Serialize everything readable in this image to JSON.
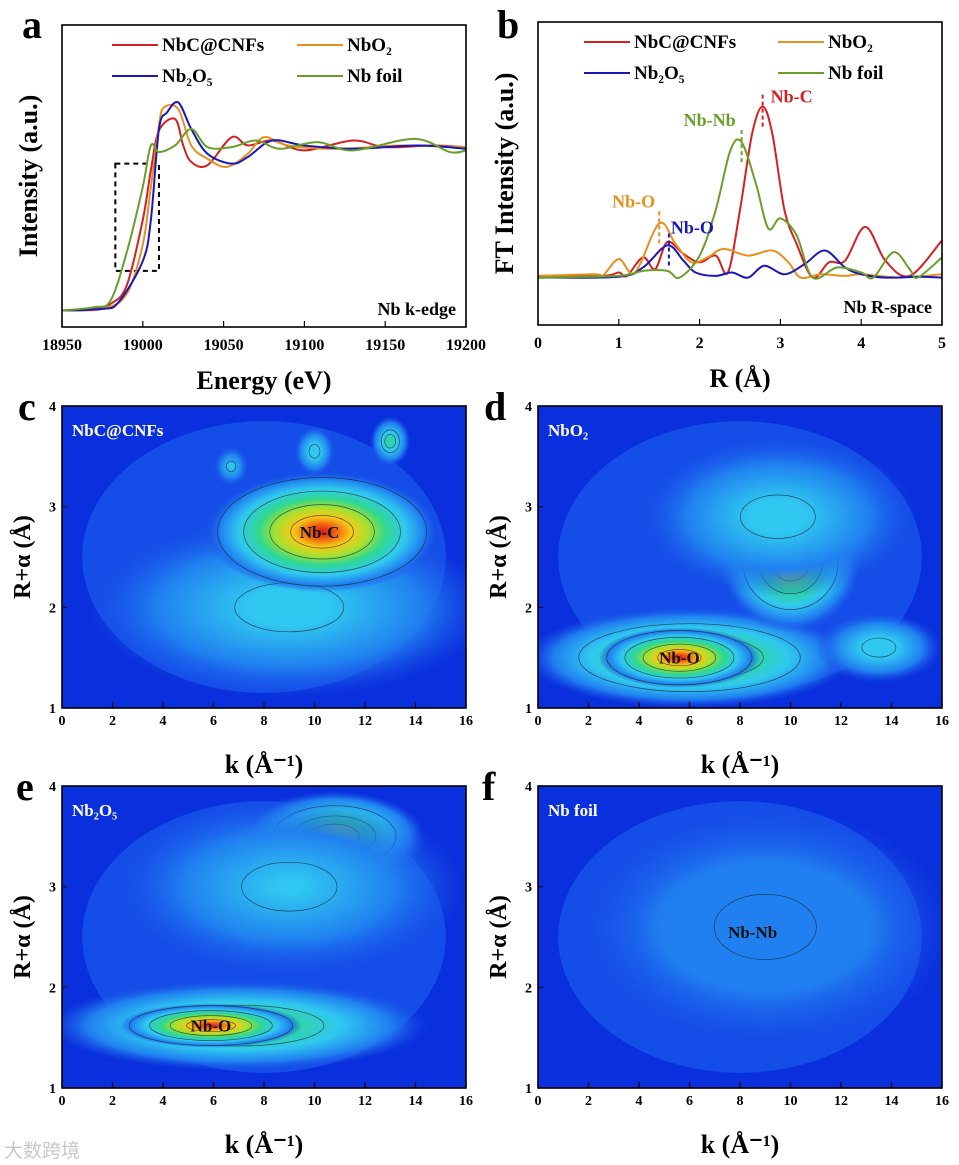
{
  "watermark": "大数跨境",
  "colors": {
    "NbC@CNFs": "#d42020",
    "NbO2": "#e8901e",
    "Nb2O5": "#1818b8",
    "Nb foil": "#6a9e2c"
  },
  "chart_data": [
    {
      "panel": "a",
      "type": "line",
      "xlabel": "Energy (eV)",
      "ylabel": "Intensity (a.u.)",
      "xlim": [
        18950,
        19200
      ],
      "ylim": [
        -0.1,
        1.73
      ],
      "xticks": [
        18950,
        19000,
        19050,
        19100,
        19150,
        19200
      ],
      "annotation": "Nb k-edge",
      "legend": "top",
      "dashed_box": {
        "x": [
          18983,
          19010
        ],
        "y": [
          0.24,
          0.89
        ]
      },
      "series": [
        {
          "name": "NbC@CNFs",
          "color": "#d42020",
          "points": [
            [
              18950,
              0
            ],
            [
              18970,
              0.01
            ],
            [
              18980,
              0.04
            ],
            [
              18990,
              0.15
            ],
            [
              19000,
              0.55
            ],
            [
              19005,
              0.85
            ],
            [
              19010,
              1.09
            ],
            [
              19020,
              1.16
            ],
            [
              19025,
              1.0
            ],
            [
              19030,
              0.9
            ],
            [
              19040,
              0.88
            ],
            [
              19055,
              1.05
            ],
            [
              19065,
              1.0
            ],
            [
              19080,
              1.03
            ],
            [
              19100,
              0.97
            ],
            [
              19130,
              1.03
            ],
            [
              19150,
              0.99
            ],
            [
              19180,
              1.0
            ],
            [
              19200,
              0.99
            ]
          ]
        },
        {
          "name": "NbO₂",
          "color": "#e8901e",
          "points": [
            [
              18950,
              0
            ],
            [
              18975,
              0.01
            ],
            [
              18990,
              0.1
            ],
            [
              19000,
              0.4
            ],
            [
              19005,
              0.75
            ],
            [
              19010,
              1.12
            ],
            [
              19013,
              1.23
            ],
            [
              19022,
              1.22
            ],
            [
              19030,
              1.0
            ],
            [
              19040,
              0.92
            ],
            [
              19052,
              0.87
            ],
            [
              19065,
              0.95
            ],
            [
              19075,
              1.05
            ],
            [
              19090,
              1.0
            ],
            [
              19120,
              0.98
            ],
            [
              19160,
              1.0
            ],
            [
              19200,
              0.99
            ]
          ]
        },
        {
          "name": "Nb₂O₅",
          "color": "#1818b8",
          "points": [
            [
              18950,
              0
            ],
            [
              18975,
              0.01
            ],
            [
              18985,
              0.05
            ],
            [
              19000,
              0.3
            ],
            [
              19005,
              0.55
            ],
            [
              19010,
              1.1
            ],
            [
              19015,
              1.2
            ],
            [
              19022,
              1.26
            ],
            [
              19030,
              1.1
            ],
            [
              19040,
              0.95
            ],
            [
              19055,
              0.89
            ],
            [
              19065,
              0.93
            ],
            [
              19080,
              1.03
            ],
            [
              19100,
              1.0
            ],
            [
              19130,
              0.98
            ],
            [
              19170,
              1.0
            ],
            [
              19200,
              0.98
            ]
          ]
        },
        {
          "name": "Nb foil",
          "color": "#6a9e2c",
          "points": [
            [
              18950,
              0
            ],
            [
              18970,
              0.02
            ],
            [
              18980,
              0.06
            ],
            [
              18990,
              0.35
            ],
            [
              19000,
              0.75
            ],
            [
              19005,
              1.0
            ],
            [
              19010,
              0.96
            ],
            [
              19020,
              1.0
            ],
            [
              19030,
              1.1
            ],
            [
              19040,
              0.99
            ],
            [
              19055,
              0.99
            ],
            [
              19070,
              1.03
            ],
            [
              19085,
              0.98
            ],
            [
              19108,
              1.02
            ],
            [
              19130,
              0.97
            ],
            [
              19168,
              1.04
            ],
            [
              19190,
              0.96
            ],
            [
              19200,
              0.97
            ]
          ]
        }
      ]
    },
    {
      "panel": "b",
      "type": "line",
      "xlabel": "R (Å)",
      "ylabel": "FT Intensity (a.u.)",
      "xlim": [
        0,
        5
      ],
      "ylim": [
        -2.8,
        15.1
      ],
      "xticks": [
        0,
        1,
        2,
        3,
        4,
        5
      ],
      "annotation": "Nb R-space",
      "legend": "top",
      "series": [
        {
          "name": "NbC@CNFs",
          "color": "#d42020",
          "points": [
            [
              0,
              0.1
            ],
            [
              0.8,
              0.1
            ],
            [
              1.0,
              0.3
            ],
            [
              1.1,
              0.1
            ],
            [
              1.3,
              1.2
            ],
            [
              1.45,
              0.5
            ],
            [
              1.6,
              2.1
            ],
            [
              1.8,
              1.4
            ],
            [
              2.0,
              0.9
            ],
            [
              2.2,
              1.3
            ],
            [
              2.35,
              0.3
            ],
            [
              2.5,
              4
            ],
            [
              2.65,
              8.5
            ],
            [
              2.78,
              10.1
            ],
            [
              2.9,
              8.5
            ],
            [
              3.05,
              4
            ],
            [
              3.2,
              2
            ],
            [
              3.4,
              0
            ],
            [
              3.6,
              0.9
            ],
            [
              3.8,
              1.0
            ],
            [
              4.05,
              3.0
            ],
            [
              4.3,
              1.0
            ],
            [
              4.6,
              0.1
            ],
            [
              5.0,
              2.2
            ]
          ]
        },
        {
          "name": "NbO₂",
          "color": "#e8901e",
          "points": [
            [
              0,
              0.1
            ],
            [
              0.7,
              0.2
            ],
            [
              0.8,
              0.1
            ],
            [
              1.0,
              1.1
            ],
            [
              1.2,
              0.3
            ],
            [
              1.5,
              3.2
            ],
            [
              1.7,
              2.0
            ],
            [
              1.9,
              0.9
            ],
            [
              2.1,
              1.2
            ],
            [
              2.3,
              1.7
            ],
            [
              2.6,
              1.3
            ],
            [
              2.9,
              1.6
            ],
            [
              3.1,
              0.9
            ],
            [
              3.25,
              0
            ],
            [
              3.5,
              0.2
            ],
            [
              3.8,
              0.1
            ],
            [
              4.0,
              0.2
            ],
            [
              4.5,
              0.0
            ],
            [
              5.0,
              0.2
            ]
          ]
        },
        {
          "name": "Nb₂O₅",
          "color": "#1818b8",
          "points": [
            [
              0,
              0
            ],
            [
              1.0,
              0.05
            ],
            [
              1.3,
              0.6
            ],
            [
              1.6,
              1.9
            ],
            [
              1.8,
              1.0
            ],
            [
              1.95,
              0.3
            ],
            [
              2.2,
              0.1
            ],
            [
              2.4,
              0.3
            ],
            [
              2.6,
              0
            ],
            [
              2.8,
              0.7
            ],
            [
              3.05,
              0.2
            ],
            [
              3.3,
              0.8
            ],
            [
              3.55,
              1.6
            ],
            [
              3.8,
              0.6
            ],
            [
              4.0,
              0.2
            ],
            [
              4.3,
              0.0
            ],
            [
              4.7,
              0.05
            ],
            [
              5.0,
              0
            ]
          ]
        },
        {
          "name": "Nb foil",
          "color": "#6a9e2c",
          "points": [
            [
              0,
              0
            ],
            [
              1.0,
              0.1
            ],
            [
              1.3,
              0.4
            ],
            [
              1.6,
              0.4
            ],
            [
              1.75,
              0
            ],
            [
              2.0,
              1.3
            ],
            [
              2.2,
              4.0
            ],
            [
              2.38,
              7.5
            ],
            [
              2.52,
              8.0
            ],
            [
              2.7,
              5.5
            ],
            [
              2.85,
              2.9
            ],
            [
              3.0,
              3.5
            ],
            [
              3.2,
              2.5
            ],
            [
              3.4,
              0
            ],
            [
              3.7,
              0.6
            ],
            [
              4.0,
              0.3
            ],
            [
              4.15,
              0
            ],
            [
              4.4,
              1.5
            ],
            [
              4.6,
              0.5
            ],
            [
              4.7,
              0.0
            ],
            [
              5.0,
              1.2
            ]
          ]
        }
      ],
      "peak_labels": [
        {
          "text": "Nb-C",
          "x": 2.78,
          "y": 10.1,
          "color": "#d42020"
        },
        {
          "text": "Nb-Nb",
          "x": 2.52,
          "y": 8.0,
          "color": "#6a9e2c"
        },
        {
          "text": "Nb-O",
          "x": 1.5,
          "y": 3.2,
          "color": "#e8901e"
        },
        {
          "text": "Nb-O",
          "x": 1.62,
          "y": 1.9,
          "color": "#1818b8"
        }
      ]
    },
    {
      "panel": "c",
      "type": "heatmap",
      "title": "NbC@CNFs",
      "xlabel": "k (Å⁻¹)",
      "ylabel": "R+α (Å)",
      "xlim": [
        0,
        16
      ],
      "ylim": [
        1,
        4
      ],
      "xticks": [
        0,
        2,
        4,
        6,
        8,
        10,
        12,
        14,
        16
      ],
      "yticks": [
        1,
        2,
        3,
        4
      ],
      "peak_label": {
        "text": "Nb-C",
        "k": 10.2,
        "R": 2.75
      },
      "features": [
        {
          "k": 9,
          "R": 2.0,
          "rk": 8,
          "rR": 0.9,
          "level": 0.35
        },
        {
          "k": 10.3,
          "R": 2.75,
          "rk": 4.6,
          "rR": 0.6,
          "level": 1.0
        },
        {
          "k": 10,
          "R": 3.55,
          "rk": 0.8,
          "rR": 0.25,
          "level": 0.4
        },
        {
          "k": 13,
          "R": 3.65,
          "rk": 0.8,
          "rR": 0.25,
          "level": 0.45
        },
        {
          "k": 6.7,
          "R": 3.4,
          "rk": 0.7,
          "rR": 0.2,
          "level": 0.3
        }
      ]
    },
    {
      "panel": "d",
      "type": "heatmap",
      "title": "NbO₂",
      "xlabel": "k (Å⁻¹)",
      "ylabel": "R+α (Å)",
      "xlim": [
        0,
        16
      ],
      "ylim": [
        1,
        4
      ],
      "xticks": [
        0,
        2,
        4,
        6,
        8,
        10,
        12,
        14,
        16
      ],
      "yticks": [
        1,
        2,
        3,
        4
      ],
      "peak_label": {
        "text": "Nb-O",
        "k": 5.6,
        "R": 1.5
      },
      "features": [
        {
          "k": 6,
          "R": 1.5,
          "rk": 6.5,
          "rR": 0.5,
          "level": 0.7
        },
        {
          "k": 5.6,
          "R": 1.5,
          "rk": 3.2,
          "rR": 0.3,
          "level": 1.0
        },
        {
          "k": 10,
          "R": 2.45,
          "rk": 2.8,
          "rR": 0.7,
          "level": 0.75
        },
        {
          "k": 9.5,
          "R": 2.9,
          "rk": 5.5,
          "rR": 0.8,
          "level": 0.35
        },
        {
          "k": 13.5,
          "R": 1.6,
          "rk": 2.5,
          "rR": 0.35,
          "level": 0.4
        }
      ]
    },
    {
      "panel": "e",
      "type": "heatmap",
      "title": "Nb₂O₅",
      "xlabel": "k (Å⁻¹)",
      "ylabel": "R+α (Å)",
      "xlim": [
        0,
        16
      ],
      "ylim": [
        1,
        4
      ],
      "xticks": [
        0,
        2,
        4,
        6,
        8,
        10,
        12,
        14,
        16
      ],
      "yticks": [
        1,
        2,
        3,
        4
      ],
      "peak_label": {
        "text": "Nb-O",
        "k": 5.9,
        "R": 1.62
      },
      "features": [
        {
          "k": 7,
          "R": 1.62,
          "rk": 7.5,
          "rR": 0.45,
          "level": 0.6
        },
        {
          "k": 5.9,
          "R": 1.62,
          "rk": 3.6,
          "rR": 0.22,
          "level": 1.0
        },
        {
          "k": 10.8,
          "R": 3.5,
          "rk": 3.6,
          "rR": 0.45,
          "level": 0.7
        },
        {
          "k": 9,
          "R": 3.0,
          "rk": 7,
          "rR": 0.9,
          "level": 0.3
        }
      ]
    },
    {
      "panel": "f",
      "type": "heatmap",
      "title": "Nb foil",
      "xlabel": "k (Å⁻¹)",
      "ylabel": "R+α (Å)",
      "xlim": [
        0,
        16
      ],
      "ylim": [
        1,
        4
      ],
      "xticks": [
        0,
        2,
        4,
        6,
        8,
        10,
        12,
        14,
        16
      ],
      "yticks": [
        1,
        2,
        3,
        4
      ],
      "peak_label": {
        "text": "Nb-Nb",
        "k": 8.5,
        "R": 2.55
      },
      "features": [
        {
          "k": 9,
          "R": 2.6,
          "rk": 5.2,
          "rR": 0.75,
          "level": 0.7
        },
        {
          "k": 8.2,
          "R": 2.58,
          "rk": 2.6,
          "rR": 0.4,
          "level": 1.0
        },
        {
          "k": 11.3,
          "R": 2.98,
          "rk": 0.6,
          "rR": 0.15,
          "level": 0.4
        },
        {
          "k": 9,
          "R": 2.6,
          "rk": 7.5,
          "rR": 1.2,
          "level": 0.25
        }
      ]
    }
  ]
}
